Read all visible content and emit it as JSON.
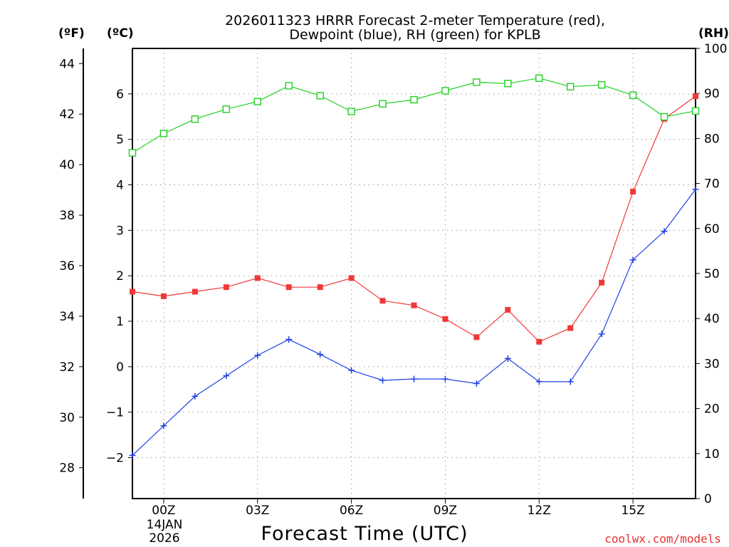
{
  "chart_data": {
    "type": "line",
    "title_line1": "2026011323 HRRR Forecast 2-meter Temperature (red),",
    "title_line2": "Dewpoint (blue), RH (green) for KPLB",
    "xlabel": "Forecast Time (UTC)",
    "credit": "coolwx.com/models",
    "units": {
      "fahrenheit": "(ºF)",
      "celsius": "(ºC)",
      "rh": "(RH)"
    },
    "x": [
      -1,
      0,
      1,
      2,
      3,
      4,
      5,
      6,
      7,
      8,
      9,
      10,
      11,
      12,
      13,
      14,
      15,
      16,
      17
    ],
    "xlim": [
      -1,
      17
    ],
    "x_ticks": [
      {
        "x": 0,
        "label": "00Z"
      },
      {
        "x": 3,
        "label": "03Z"
      },
      {
        "x": 6,
        "label": "06Z"
      },
      {
        "x": 9,
        "label": "09Z"
      },
      {
        "x": 12,
        "label": "12Z"
      },
      {
        "x": 15,
        "label": "15Z"
      }
    ],
    "date_line1": "14JAN",
    "date_line2": "2026",
    "celsius_lim": [
      -2.9,
      7.0
    ],
    "celsius_ticks": [
      -2,
      -1,
      0,
      1,
      2,
      3,
      4,
      5,
      6
    ],
    "fahrenheit_ticks": [
      28,
      30,
      32,
      34,
      36,
      38,
      40,
      42,
      44
    ],
    "rh_lim": [
      0,
      100
    ],
    "rh_ticks": [
      0,
      10,
      20,
      30,
      40,
      50,
      60,
      70,
      80,
      90,
      100
    ],
    "series": [
      {
        "name": "Temperature",
        "axis": "celsius",
        "color": "#f03838",
        "marker": "filled-square",
        "values": [
          1.65,
          1.55,
          1.65,
          1.75,
          1.95,
          1.75,
          1.75,
          1.95,
          1.45,
          1.35,
          1.05,
          0.65,
          1.25,
          0.55,
          0.85,
          1.85,
          3.85,
          5.45,
          5.95
        ]
      },
      {
        "name": "Dewpoint",
        "axis": "celsius",
        "color": "#2040e8",
        "marker": "plus",
        "values": [
          -1.95,
          -1.3,
          -0.65,
          -0.2,
          0.25,
          0.6,
          0.27,
          -0.08,
          -0.3,
          -0.27,
          -0.27,
          -0.37,
          0.18,
          -0.33,
          -0.33,
          0.72,
          2.35,
          2.98,
          3.9
        ]
      },
      {
        "name": "RH",
        "axis": "rh",
        "color": "#20d020",
        "marker": "open-square",
        "values": [
          76.8,
          81.1,
          84.3,
          86.5,
          88.2,
          91.7,
          89.5,
          86.0,
          87.7,
          88.6,
          90.6,
          92.5,
          92.2,
          93.4,
          91.5,
          91.9,
          89.6,
          84.8,
          86.1
        ]
      }
    ]
  }
}
